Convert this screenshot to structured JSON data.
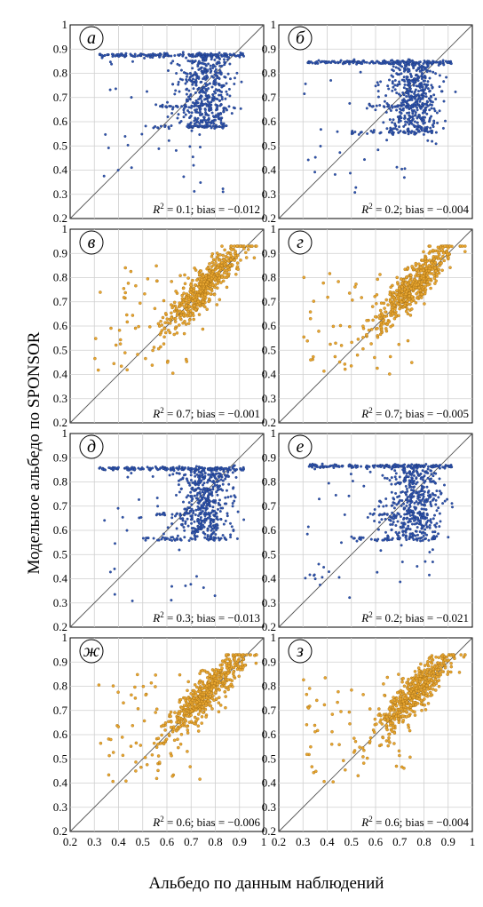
{
  "figure": {
    "ylabel": "Модельное альбедо по SPONSOR",
    "xlabel": "Альбедо по данным наблюдений"
  },
  "colors": {
    "blue": "#2f55b0",
    "orange": "#e8a630"
  },
  "chart_data": [
    {
      "type": "scatter",
      "panel": "а",
      "color": "blue",
      "pattern": "saturated",
      "cap": 0.875,
      "floor": 0.58,
      "xlim": [
        0.2,
        1.0
      ],
      "ylim": [
        0.2,
        1.0
      ],
      "diagonal": true,
      "grid": true,
      "xticks": [
        "0.2",
        "0.3",
        "0.4",
        "0.5",
        "0.6",
        "0.7",
        "0.8",
        "0.9",
        "1"
      ],
      "yticks": [
        "0.2",
        "0.3",
        "0.4",
        "0.5",
        "0.6",
        "0.7",
        "0.8",
        "0.9",
        "1"
      ],
      "annotation": {
        "r2_prefix": "R",
        "r2_sup": "2",
        "r2_rest": " = 0.1; bias = −0.012"
      }
    },
    {
      "type": "scatter",
      "panel": "б",
      "color": "blue",
      "pattern": "saturated",
      "cap": 0.845,
      "floor": 0.555,
      "xlim": [
        0.2,
        1.0
      ],
      "ylim": [
        0.2,
        1.0
      ],
      "diagonal": true,
      "grid": true,
      "xticks": [
        "0.2",
        "0.3",
        "0.4",
        "0.5",
        "0.6",
        "0.7",
        "0.8",
        "0.9",
        "1"
      ],
      "yticks": [
        "0.2",
        "0.3",
        "0.4",
        "0.5",
        "0.6",
        "0.7",
        "0.8",
        "0.9",
        "1"
      ],
      "annotation": {
        "r2_prefix": "R",
        "r2_sup": "2",
        "r2_rest": " = 0.2; bias = −0.004"
      }
    },
    {
      "type": "scatter",
      "panel": "в",
      "color": "orange",
      "pattern": "correlated",
      "xlim": [
        0.2,
        1.0
      ],
      "ylim": [
        0.2,
        1.0
      ],
      "diagonal": true,
      "grid": true,
      "xticks": [
        "0.2",
        "0.3",
        "0.4",
        "0.5",
        "0.6",
        "0.7",
        "0.8",
        "0.9",
        "1"
      ],
      "yticks": [
        "0.2",
        "0.3",
        "0.4",
        "0.5",
        "0.6",
        "0.7",
        "0.8",
        "0.9",
        "1"
      ],
      "annotation": {
        "r2_prefix": "R",
        "r2_sup": "2",
        "r2_rest": " = 0.7; bias = −0.001"
      }
    },
    {
      "type": "scatter",
      "panel": "г",
      "color": "orange",
      "pattern": "correlated",
      "xlim": [
        0.2,
        1.0
      ],
      "ylim": [
        0.2,
        1.0
      ],
      "diagonal": true,
      "grid": true,
      "xticks": [
        "0.2",
        "0.3",
        "0.4",
        "0.5",
        "0.6",
        "0.7",
        "0.8",
        "0.9",
        "1"
      ],
      "yticks": [
        "0.2",
        "0.3",
        "0.4",
        "0.5",
        "0.6",
        "0.7",
        "0.8",
        "0.9",
        "1"
      ],
      "annotation": {
        "r2_prefix": "R",
        "r2_sup": "2",
        "r2_rest": " = 0.7; bias = −0.005"
      }
    },
    {
      "type": "scatter",
      "panel": "д",
      "color": "blue",
      "pattern": "saturated",
      "cap": 0.855,
      "floor": 0.565,
      "xlim": [
        0.2,
        1.0
      ],
      "ylim": [
        0.2,
        1.0
      ],
      "diagonal": true,
      "grid": true,
      "xticks": [
        "0.2",
        "0.3",
        "0.4",
        "0.5",
        "0.6",
        "0.7",
        "0.8",
        "0.9",
        "1"
      ],
      "yticks": [
        "0.2",
        "0.3",
        "0.4",
        "0.5",
        "0.6",
        "0.7",
        "0.8",
        "0.9",
        "1"
      ],
      "annotation": {
        "r2_prefix": "R",
        "r2_sup": "2",
        "r2_rest": " = 0.3; bias = −0.013"
      }
    },
    {
      "type": "scatter",
      "panel": "е",
      "color": "blue",
      "pattern": "saturated",
      "cap": 0.865,
      "floor": 0.565,
      "xlim": [
        0.2,
        1.0
      ],
      "ylim": [
        0.2,
        1.0
      ],
      "diagonal": true,
      "grid": true,
      "xticks": [
        "0.2",
        "0.3",
        "0.4",
        "0.5",
        "0.6",
        "0.7",
        "0.8",
        "0.9",
        "1"
      ],
      "yticks": [
        "0.2",
        "0.3",
        "0.4",
        "0.5",
        "0.6",
        "0.7",
        "0.8",
        "0.9",
        "1"
      ],
      "annotation": {
        "r2_prefix": "R",
        "r2_sup": "2",
        "r2_rest": " = 0.2; bias = −0.021"
      }
    },
    {
      "type": "scatter",
      "panel": "ж",
      "color": "orange",
      "pattern": "correlated",
      "xlim": [
        0.2,
        1.0
      ],
      "ylim": [
        0.2,
        1.0
      ],
      "diagonal": true,
      "grid": true,
      "xticks": [
        "0.2",
        "0.3",
        "0.4",
        "0.5",
        "0.6",
        "0.7",
        "0.8",
        "0.9",
        "1"
      ],
      "yticks": [
        "0.2",
        "0.3",
        "0.4",
        "0.5",
        "0.6",
        "0.7",
        "0.8",
        "0.9",
        "1"
      ],
      "annotation": {
        "r2_prefix": "R",
        "r2_sup": "2",
        "r2_rest": " = 0.6; bias = −0.006"
      }
    },
    {
      "type": "scatter",
      "panel": "з",
      "color": "orange",
      "pattern": "correlated",
      "xlim": [
        0.2,
        1.0
      ],
      "ylim": [
        0.2,
        1.0
      ],
      "diagonal": true,
      "grid": true,
      "xticks": [
        "0.2",
        "0.3",
        "0.4",
        "0.5",
        "0.6",
        "0.7",
        "0.8",
        "0.9",
        "1"
      ],
      "yticks": [
        "0.2",
        "0.3",
        "0.4",
        "0.5",
        "0.6",
        "0.7",
        "0.8",
        "0.9",
        "1"
      ],
      "annotation": {
        "r2_prefix": "R",
        "r2_sup": "2",
        "r2_rest": " = 0.6; bias = −0.004"
      }
    }
  ]
}
